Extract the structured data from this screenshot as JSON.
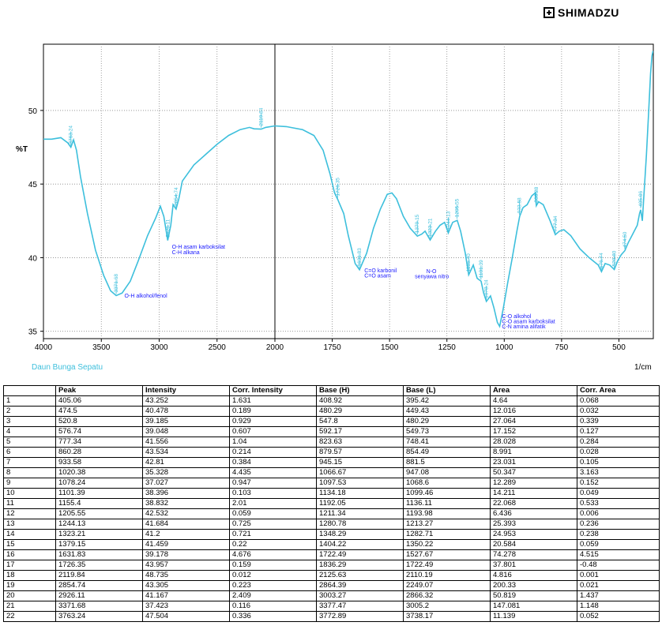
{
  "brand": {
    "name": "SHIMADZU"
  },
  "chart_data": {
    "type": "line",
    "sample_label": "Daun Bunga Sepatu",
    "ylabel": "%T",
    "xlabel": "1/cm",
    "xlim": [
      4000,
      350
    ],
    "ylim": [
      34.5,
      54.5
    ],
    "x_ticks": [
      4000,
      3500,
      3000,
      2500,
      2000,
      1750,
      1500,
      1250,
      1000,
      750,
      500
    ],
    "y_ticks": [
      35,
      40,
      45,
      50
    ],
    "series_color": "#3dbfdc",
    "label_color": "#1a1aff",
    "grid": "dotted vertical + dotted horizontal",
    "series": [
      {
        "points": [
          [
            4000,
            48.05
          ],
          [
            3930,
            48.05
          ],
          [
            3850,
            48.15
          ],
          [
            3790,
            47.8
          ],
          [
            3763,
            47.5
          ],
          [
            3740,
            48.0
          ],
          [
            3715,
            47.3
          ],
          [
            3680,
            45.5
          ],
          [
            3620,
            43.0
          ],
          [
            3550,
            40.5
          ],
          [
            3480,
            38.8
          ],
          [
            3420,
            37.75
          ],
          [
            3371,
            37.42
          ],
          [
            3320,
            37.6
          ],
          [
            3250,
            38.4
          ],
          [
            3180,
            39.8
          ],
          [
            3100,
            41.5
          ],
          [
            3030,
            42.7
          ],
          [
            2990,
            43.5
          ],
          [
            2960,
            42.8
          ],
          [
            2926,
            41.17
          ],
          [
            2900,
            42.2
          ],
          [
            2880,
            43.6
          ],
          [
            2854,
            43.3
          ],
          [
            2830,
            44.0
          ],
          [
            2800,
            45.2
          ],
          [
            2700,
            46.3
          ],
          [
            2600,
            47.0
          ],
          [
            2500,
            47.7
          ],
          [
            2400,
            48.3
          ],
          [
            2300,
            48.7
          ],
          [
            2220,
            48.85
          ],
          [
            2180,
            48.75
          ],
          [
            2119,
            48.73
          ],
          [
            2080,
            48.85
          ],
          [
            2000,
            48.95
          ],
          [
            1950,
            48.9
          ],
          [
            1880,
            48.7
          ],
          [
            1830,
            48.3
          ],
          [
            1790,
            47.3
          ],
          [
            1760,
            45.7
          ],
          [
            1740,
            44.4
          ],
          [
            1726,
            43.96
          ],
          [
            1700,
            43.0
          ],
          [
            1680,
            41.5
          ],
          [
            1650,
            39.6
          ],
          [
            1631,
            39.18
          ],
          [
            1600,
            40.3
          ],
          [
            1570,
            42.0
          ],
          [
            1540,
            43.3
          ],
          [
            1510,
            44.3
          ],
          [
            1490,
            44.4
          ],
          [
            1470,
            44.0
          ],
          [
            1440,
            42.8
          ],
          [
            1410,
            42.0
          ],
          [
            1379,
            41.46
          ],
          [
            1360,
            41.6
          ],
          [
            1345,
            41.8
          ],
          [
            1323,
            41.2
          ],
          [
            1300,
            41.8
          ],
          [
            1280,
            42.2
          ],
          [
            1260,
            42.4
          ],
          [
            1244,
            41.68
          ],
          [
            1225,
            42.4
          ],
          [
            1205,
            42.53
          ],
          [
            1190,
            41.8
          ],
          [
            1170,
            40.3
          ],
          [
            1155,
            38.83
          ],
          [
            1135,
            39.5
          ],
          [
            1118,
            38.6
          ],
          [
            1101,
            38.4
          ],
          [
            1090,
            37.6
          ],
          [
            1078,
            37.03
          ],
          [
            1060,
            37.4
          ],
          [
            1045,
            36.6
          ],
          [
            1030,
            35.6
          ],
          [
            1020,
            35.33
          ],
          [
            1005,
            36.5
          ],
          [
            985,
            38.3
          ],
          [
            965,
            40.0
          ],
          [
            945,
            41.8
          ],
          [
            933,
            42.8
          ],
          [
            918,
            43.4
          ],
          [
            900,
            43.6
          ],
          [
            880,
            44.2
          ],
          [
            865,
            44.4
          ],
          [
            860,
            43.53
          ],
          [
            850,
            43.8
          ],
          [
            830,
            43.6
          ],
          [
            800,
            42.5
          ],
          [
            777,
            41.56
          ],
          [
            760,
            41.8
          ],
          [
            740,
            41.9
          ],
          [
            710,
            41.5
          ],
          [
            670,
            40.6
          ],
          [
            630,
            40.0
          ],
          [
            590,
            39.5
          ],
          [
            576,
            39.05
          ],
          [
            560,
            39.6
          ],
          [
            540,
            39.5
          ],
          [
            520,
            39.19
          ],
          [
            505,
            39.8
          ],
          [
            490,
            40.2
          ],
          [
            474,
            40.48
          ],
          [
            460,
            41.0
          ],
          [
            440,
            41.6
          ],
          [
            420,
            42.2
          ],
          [
            410,
            43.0
          ],
          [
            405,
            43.25
          ],
          [
            398,
            42.5
          ],
          [
            390,
            44.5
          ],
          [
            380,
            47.0
          ],
          [
            370,
            50.0
          ],
          [
            362,
            52.5
          ],
          [
            356,
            53.7
          ],
          [
            352,
            54.0
          ],
          [
            350,
            54.0
          ]
        ]
      }
    ],
    "peak_labels": [
      {
        "x": 3763.24,
        "y": 47.5,
        "text": "3763.24"
      },
      {
        "x": 3371.68,
        "y": 37.42,
        "text": "3371.68"
      },
      {
        "x": 2926.11,
        "y": 41.17,
        "text": "2926.11"
      },
      {
        "x": 2854.74,
        "y": 43.3,
        "text": "2854.74"
      },
      {
        "x": 2119.84,
        "y": 48.73,
        "text": "2119.84"
      },
      {
        "x": 1726.35,
        "y": 43.96,
        "text": "1726.35"
      },
      {
        "x": 1631.83,
        "y": 39.18,
        "text": "1631.83"
      },
      {
        "x": 1379.15,
        "y": 41.46,
        "text": "1379.15"
      },
      {
        "x": 1323.21,
        "y": 41.2,
        "text": "1323.21"
      },
      {
        "x": 1244.13,
        "y": 41.68,
        "text": "1244.13"
      },
      {
        "x": 1205.55,
        "y": 42.53,
        "text": "1205.55"
      },
      {
        "x": 1155.4,
        "y": 38.83,
        "text": "1155.40"
      },
      {
        "x": 1101.39,
        "y": 38.4,
        "text": "1101.39"
      },
      {
        "x": 1078.24,
        "y": 37.03,
        "text": "1078.24"
      },
      {
        "x": 933.58,
        "y": 42.8,
        "text": "933.58"
      },
      {
        "x": 860.28,
        "y": 43.53,
        "text": "860.28"
      },
      {
        "x": 777.34,
        "y": 41.56,
        "text": "777.34"
      },
      {
        "x": 576.74,
        "y": 39.05,
        "text": "576.74"
      },
      {
        "x": 520.8,
        "y": 39.19,
        "text": "520.80"
      },
      {
        "x": 474.5,
        "y": 40.48,
        "text": "474.50"
      },
      {
        "x": 405.06,
        "y": 43.25,
        "text": "405.06"
      }
    ],
    "annotations": [
      {
        "x": 3300,
        "y": 37.3,
        "text": "O-H alkohol/fenol"
      },
      {
        "x": 2890,
        "y": 40.6,
        "text": "O-H asam karboksilat"
      },
      {
        "x": 2890,
        "y": 40.25,
        "text": "C-H alkana"
      },
      {
        "x": 1610,
        "y": 39.0,
        "text": "C=O karbonil"
      },
      {
        "x": 1610,
        "y": 38.65,
        "text": "C=O asam"
      },
      {
        "x": 1340,
        "y": 38.95,
        "text": "N-O"
      },
      {
        "x": 1390,
        "y": 38.6,
        "text": "senyawa nitro"
      },
      {
        "x": 1010,
        "y": 35.9,
        "text": "C-O alkohol"
      },
      {
        "x": 1010,
        "y": 35.55,
        "text": "C-O asam karboksilat"
      },
      {
        "x": 1010,
        "y": 35.2,
        "text": "C-N amina alifatik"
      }
    ]
  },
  "table": {
    "headers": [
      "",
      "Peak",
      "Intensity",
      "Corr. Intensity",
      "Base (H)",
      "Base (L)",
      "Area",
      "Corr. Area"
    ],
    "rows": [
      [
        "1",
        "405.06",
        "43.252",
        "1.631",
        "408.92",
        "395.42",
        "4.64",
        "0.068"
      ],
      [
        "2",
        "474.5",
        "40.478",
        "0.189",
        "480.29",
        "449.43",
        "12.016",
        "0.032"
      ],
      [
        "3",
        "520.8",
        "39.185",
        "0.929",
        "547.8",
        "480.29",
        "27.064",
        "0.339"
      ],
      [
        "4",
        "576.74",
        "39.048",
        "0.607",
        "592.17",
        "549.73",
        "17.152",
        "0.127"
      ],
      [
        "5",
        "777.34",
        "41.556",
        "1.04",
        "823.63",
        "748.41",
        "28.028",
        "0.284"
      ],
      [
        "6",
        "860.28",
        "43.534",
        "0.214",
        "879.57",
        "854.49",
        "8.991",
        "0.028"
      ],
      [
        "7",
        "933.58",
        "42.81",
        "0.384",
        "945.15",
        "881.5",
        "23.031",
        "0.105"
      ],
      [
        "8",
        "1020.38",
        "35.328",
        "4.435",
        "1066.67",
        "947.08",
        "50.347",
        "3.163"
      ],
      [
        "9",
        "1078.24",
        "37.027",
        "0.947",
        "1097.53",
        "1068.6",
        "12.289",
        "0.152"
      ],
      [
        "10",
        "1101.39",
        "38.396",
        "0.103",
        "1134.18",
        "1099.46",
        "14.211",
        "0.049"
      ],
      [
        "11",
        "1155.4",
        "38.832",
        "2.01",
        "1192.05",
        "1136.11",
        "22.068",
        "0.533"
      ],
      [
        "12",
        "1205.55",
        "42.532",
        "0.059",
        "1211.34",
        "1193.98",
        "6.436",
        "0.006"
      ],
      [
        "13",
        "1244.13",
        "41.684",
        "0.725",
        "1280.78",
        "1213.27",
        "25.393",
        "0.236"
      ],
      [
        "14",
        "1323.21",
        "41.2",
        "0.721",
        "1348.29",
        "1282.71",
        "24.953",
        "0.238"
      ],
      [
        "15",
        "1379.15",
        "41.459",
        "0.22",
        "1404.22",
        "1350.22",
        "20.584",
        "0.059"
      ],
      [
        "16",
        "1631.83",
        "39.178",
        "4.676",
        "1722.49",
        "1527.67",
        "74.278",
        "4.515"
      ],
      [
        "17",
        "1726.35",
        "43.957",
        "0.159",
        "1836.29",
        "1722.49",
        "37.801",
        "-0.48"
      ],
      [
        "18",
        "2119.84",
        "48.735",
        "0.012",
        "2125.63",
        "2110.19",
        "4.816",
        "0.001"
      ],
      [
        "19",
        "2854.74",
        "43.305",
        "0.223",
        "2864.39",
        "2249.07",
        "200.33",
        "0.021"
      ],
      [
        "20",
        "2926.11",
        "41.167",
        "2.409",
        "3003.27",
        "2866.32",
        "50.819",
        "1.437"
      ],
      [
        "21",
        "3371.68",
        "37.423",
        "0.116",
        "3377.47",
        "3005.2",
        "147.081",
        "1.148"
      ],
      [
        "22",
        "3763.24",
        "47.504",
        "0.336",
        "3772.89",
        "3738.17",
        "11.139",
        "0.052"
      ]
    ]
  }
}
